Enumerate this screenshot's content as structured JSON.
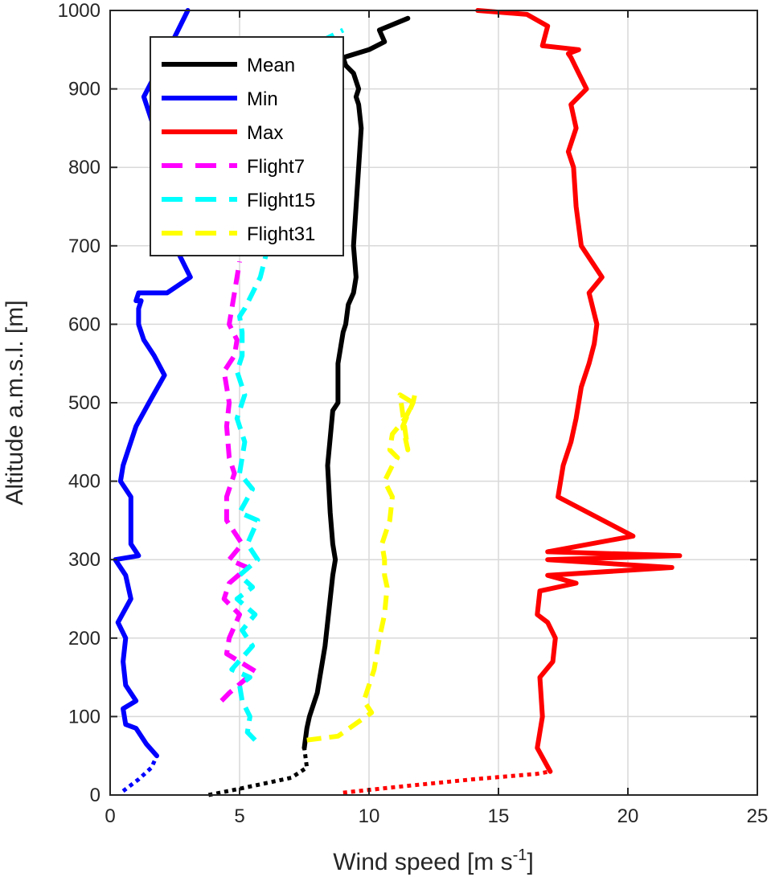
{
  "chart_data": {
    "type": "line",
    "xlabel": "Wind speed [m s",
    "xlabel_sup": "-1",
    "xlabel_end": "]",
    "ylabel": "Altitude a.m.s.l. [m]",
    "xlim": [
      0,
      25
    ],
    "ylim": [
      0,
      1000
    ],
    "x_ticks": [
      "0",
      "5",
      "10",
      "15",
      "20",
      "25"
    ],
    "y_ticks": [
      "0",
      "100",
      "200",
      "300",
      "400",
      "500",
      "600",
      "700",
      "800",
      "900",
      "1000"
    ],
    "grid": true,
    "legend_position": "top-left",
    "series": [
      {
        "name": "Mean",
        "color": "#000000",
        "style": "solid",
        "dotted_lower": {
          "x": [
            3.8,
            5.0,
            6.0,
            7.0,
            7.6,
            7.5
          ],
          "y": [
            0,
            8,
            15,
            22,
            35,
            60
          ]
        },
        "x": [
          7.5,
          7.6,
          7.7,
          8.0,
          8.1,
          8.3,
          8.4,
          8.5,
          8.6,
          8.7,
          8.6,
          8.5,
          8.4,
          8.6,
          8.8,
          8.8,
          9.0,
          9.1,
          9.2,
          9.4,
          9.5,
          9.4,
          9.5,
          9.6,
          9.7,
          9.6,
          9.5,
          9.6,
          9.4,
          9.1,
          9.0,
          10.0,
          10.6,
          10.4,
          11.5
        ],
        "y": [
          60,
          85,
          100,
          130,
          150,
          190,
          220,
          250,
          280,
          300,
          320,
          360,
          420,
          490,
          500,
          550,
          590,
          600,
          625,
          640,
          660,
          700,
          750,
          800,
          850,
          880,
          890,
          900,
          920,
          930,
          940,
          950,
          960,
          975,
          990
        ]
      },
      {
        "name": "Min",
        "color": "#0000ff",
        "style": "solid",
        "dotted_lower": {
          "x": [
            0.5,
            1.1,
            1.6,
            1.8
          ],
          "y": [
            5,
            20,
            35,
            50
          ]
        },
        "x": [
          1.8,
          1.4,
          1.0,
          0.6,
          0.5,
          1.0,
          0.6,
          0.5,
          0.6,
          0.3,
          0.8,
          0.6,
          0.2,
          1.1,
          0.8,
          0.8,
          0.4,
          0.5,
          1.0,
          1.5,
          2.1,
          1.7,
          1.3,
          1.1,
          1.1,
          1.2,
          1.0,
          1.1,
          2.2,
          3.1,
          2.5,
          2.9,
          2.2,
          1.3,
          2.4,
          3.0
        ],
        "y": [
          50,
          65,
          85,
          90,
          110,
          120,
          140,
          170,
          200,
          220,
          250,
          280,
          300,
          305,
          320,
          380,
          400,
          420,
          470,
          500,
          535,
          560,
          580,
          600,
          620,
          630,
          630,
          640,
          640,
          660,
          700,
          750,
          800,
          890,
          960,
          1000
        ]
      },
      {
        "name": "Max",
        "color": "#ff0000",
        "style": "solid",
        "dotted_lower": {
          "x": [
            9.0,
            11.0,
            14.0,
            16.5,
            17.0
          ],
          "y": [
            3,
            10,
            20,
            27,
            30
          ]
        },
        "x": [
          17.0,
          16.5,
          16.7,
          16.6,
          17.1,
          17.2,
          16.9,
          16.5,
          16.6,
          18.0,
          16.9,
          21.7,
          16.9,
          22.0,
          16.9,
          20.2,
          17.3,
          17.5,
          17.8,
          18.0,
          18.2,
          18.5,
          18.7,
          18.8,
          18.5,
          19.0,
          18.6,
          18.2,
          18.0,
          17.9,
          17.7,
          18.0,
          17.8,
          18.4,
          18.1,
          17.8,
          17.7,
          18.1,
          16.7,
          16.9,
          16.1,
          14.2
        ],
        "y": [
          30,
          60,
          100,
          150,
          170,
          200,
          220,
          230,
          260,
          270,
          280,
          290,
          300,
          305,
          310,
          330,
          380,
          420,
          450,
          480,
          520,
          550,
          575,
          600,
          640,
          660,
          680,
          700,
          750,
          800,
          820,
          850,
          880,
          900,
          920,
          940,
          945,
          950,
          955,
          980,
          995,
          1000
        ]
      },
      {
        "name": "Flight7",
        "color": "#ff00ff",
        "style": "dashed",
        "x": [
          4.3,
          4.6,
          5.6,
          4.5,
          4.6,
          5.0,
          4.4,
          4.6,
          5.3,
          4.6,
          5.1,
          4.5,
          4.5,
          4.8,
          4.6,
          4.5,
          4.6,
          4.4,
          4.8,
          4.9,
          4.6,
          4.8,
          5.0
        ],
        "y": [
          120,
          130,
          158,
          180,
          200,
          230,
          250,
          270,
          290,
          300,
          320,
          350,
          380,
          410,
          430,
          470,
          500,
          540,
          560,
          580,
          600,
          640,
          680
        ]
      },
      {
        "name": "Flight15",
        "color": "#00ffff",
        "style": "dashed",
        "x": [
          5.6,
          5.3,
          5.4,
          5.1,
          5.0,
          5.4,
          4.7,
          5.5,
          5.1,
          5.6,
          4.9,
          5.5,
          5.0,
          5.7,
          5.3,
          5.7,
          5.0,
          5.5,
          5.0,
          5.2,
          4.9,
          5.2,
          4.9,
          5.1,
          5.1,
          5.0,
          5.2,
          5.5,
          5.8,
          8.1,
          9.0
        ],
        "y": [
          70,
          80,
          100,
          120,
          140,
          150,
          160,
          190,
          210,
          230,
          250,
          265,
          280,
          300,
          320,
          350,
          360,
          390,
          410,
          450,
          480,
          510,
          540,
          560,
          590,
          610,
          620,
          640,
          660,
          960,
          975
        ]
      },
      {
        "name": "Flight31",
        "color": "#ffff00",
        "style": "dashed",
        "x": [
          7.6,
          8.8,
          10.1,
          9.8,
          10.2,
          10.4,
          10.6,
          10.7,
          10.6,
          10.6,
          10.5,
          10.8,
          10.9,
          10.6,
          10.9,
          11.1,
          10.8,
          10.9,
          11.4,
          11.7,
          11.2,
          11.5,
          11.3,
          11.7,
          11.8
        ],
        "y": [
          70,
          75,
          105,
          120,
          160,
          200,
          230,
          265,
          280,
          300,
          320,
          350,
          380,
          400,
          420,
          430,
          440,
          460,
          480,
          500,
          510,
          440,
          470,
          500,
          515
        ]
      }
    ]
  }
}
